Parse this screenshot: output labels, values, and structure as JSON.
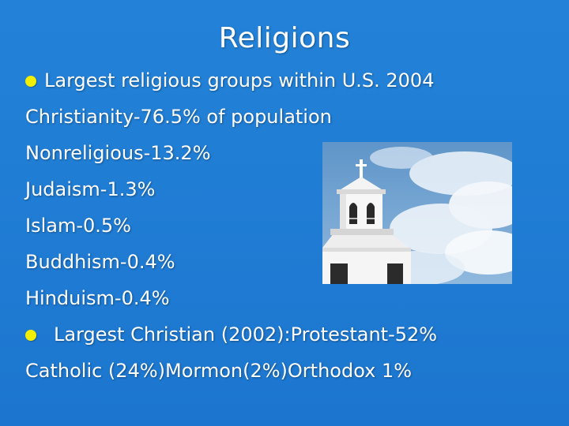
{
  "slide": {
    "title": "Religions",
    "bullet1": "Largest religious groups within U.S. 2004",
    "lines": [
      "Christianity-76.5% of population",
      "Nonreligious-13.2%",
      "Judaism-1.3%",
      "Islam-0.5%",
      "Buddhism-0.4%",
      "Hinduism-0.4%"
    ],
    "bullet2": "Largest Christian (2002):Protestant-52%",
    "last_line": "Catholic (24%)Mormon(2%)Orthodox 1%"
  },
  "colors": {
    "background": "#1f7bd3",
    "text": "#ffffff",
    "bullet": "#f2f000"
  },
  "image": {
    "description_icon": "church-steeple-photo"
  }
}
